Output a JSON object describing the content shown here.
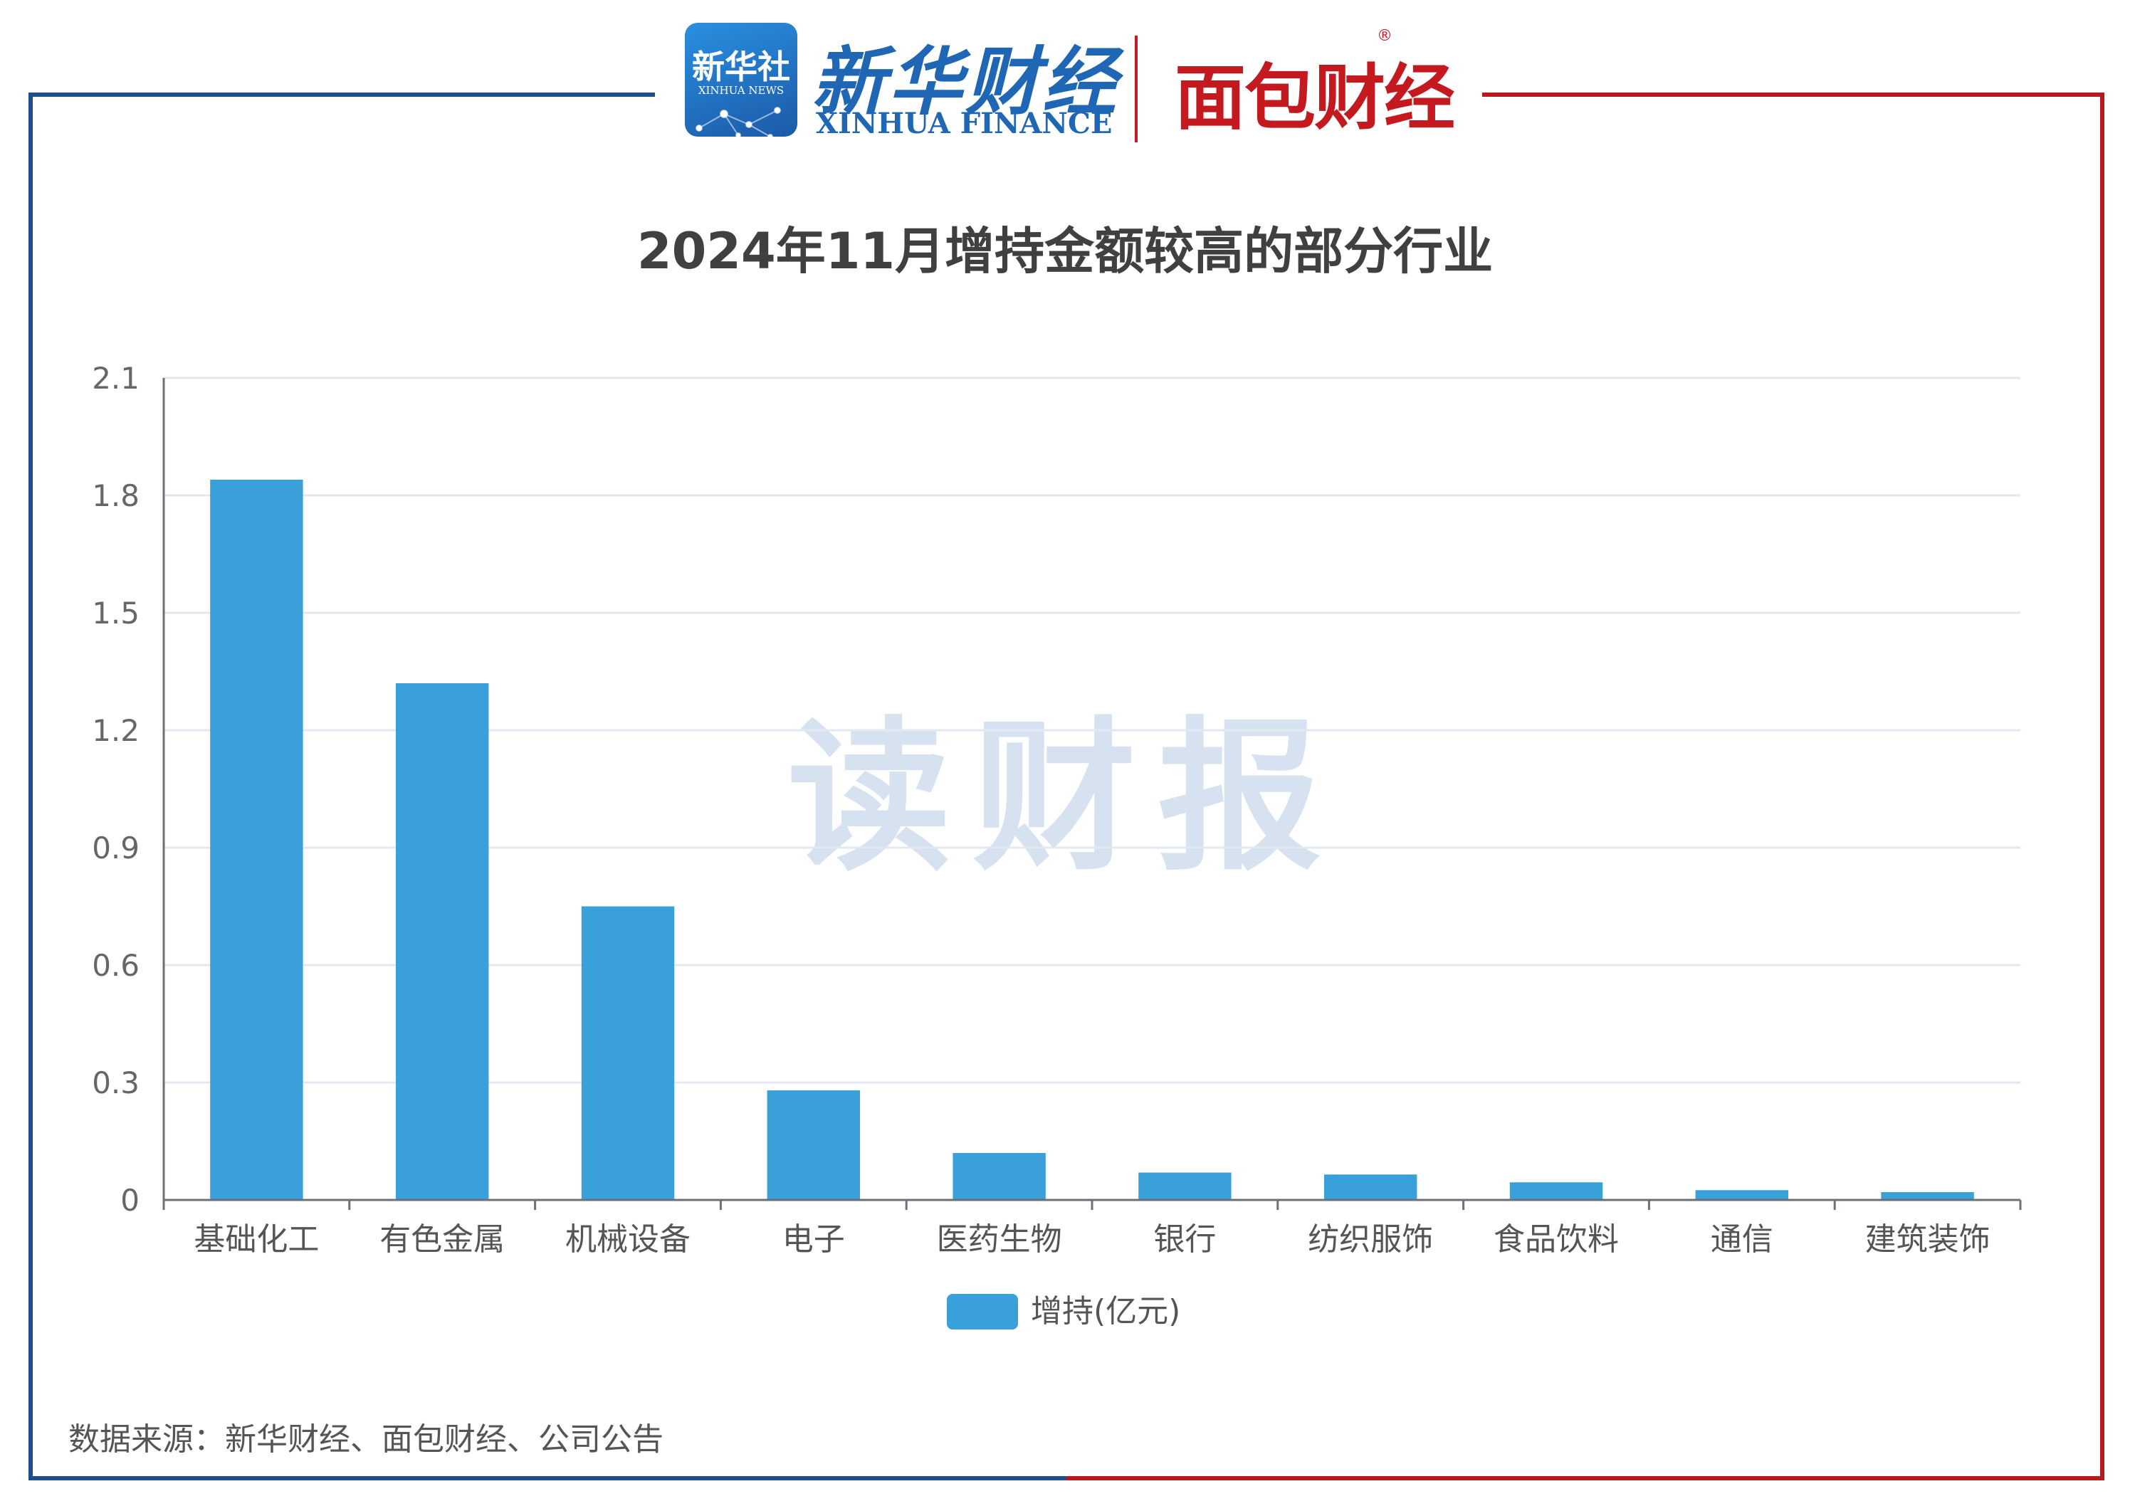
{
  "header": {
    "xinhua_news_cn": "新华社",
    "xinhua_news_en": "XINHUA NEWS",
    "xinhua_finance_cn": "新华财经",
    "xinhua_finance_en": "XINHUA FINANCE",
    "mianbao_cn": "面包财经",
    "registered_mark": "®"
  },
  "watermark": "读财报",
  "footer": {
    "source": "数据来源：新华财经、面包财经、公司公告"
  },
  "colors": {
    "frame_left_blue": "#1f4e8c",
    "frame_right_red": "#b7191f",
    "bar": "#3aa0da",
    "xinhua_blue": "#1f66b5",
    "mianbao_red": "#c41a1f"
  },
  "chart_data": {
    "type": "bar",
    "title": "2024年11月增持金额较高的部分行业",
    "categories": [
      "基础化工",
      "有色金属",
      "机械设备",
      "电子",
      "医药生物",
      "银行",
      "纺织服饰",
      "食品饮料",
      "通信",
      "建筑装饰"
    ],
    "series": [
      {
        "name": "增持(亿元)",
        "values": [
          1.84,
          1.32,
          0.75,
          0.28,
          0.12,
          0.07,
          0.065,
          0.045,
          0.025,
          0.02
        ]
      }
    ],
    "yticks": [
      "0",
      "0.3",
      "0.6",
      "0.9",
      "1.2",
      "1.5",
      "1.8",
      "2.1"
    ],
    "ylim": [
      0,
      2.1
    ],
    "grid": true,
    "legend": "bottom-center"
  }
}
